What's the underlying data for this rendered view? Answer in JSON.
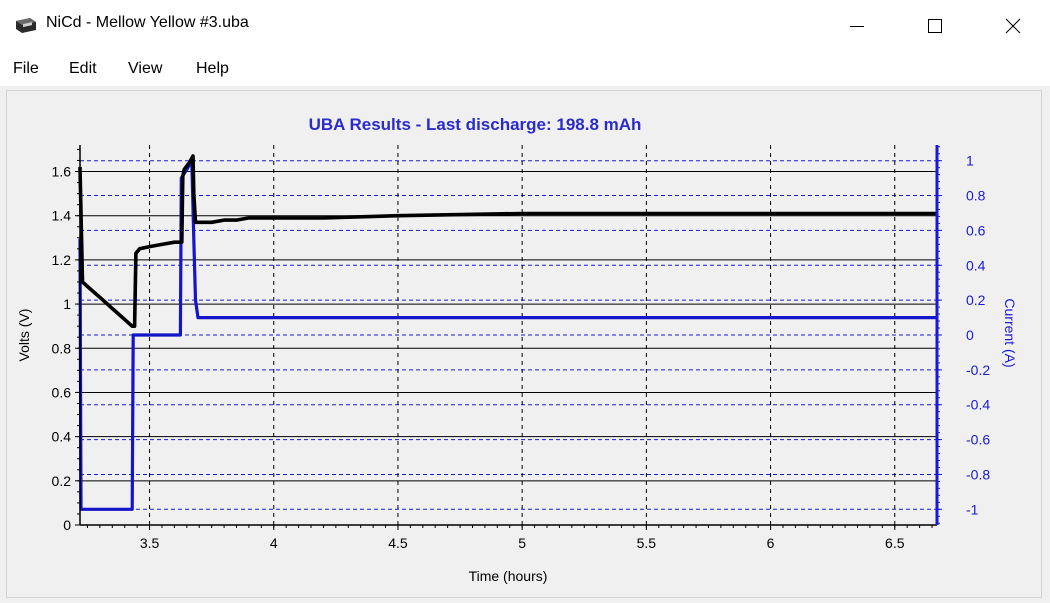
{
  "window": {
    "title": "NiCd - Mellow Yellow #3.uba",
    "icon": "battery-analyzer-icon",
    "controls": {
      "minimize": "minimize-icon",
      "maximize": "maximize-icon",
      "close": "close-icon"
    }
  },
  "menu": {
    "items": [
      "File",
      "Edit",
      "View",
      "Help"
    ]
  },
  "chart_data": {
    "type": "line",
    "title": "UBA Results - Last discharge: 198.8 mAh",
    "xlabel": "Time (hours)",
    "ylabel": "Volts (V)",
    "y2label": "Current (A)",
    "xlim": [
      3.22,
      6.67
    ],
    "ylim": [
      0,
      1.72
    ],
    "y2lim": [
      -1.09,
      1.09
    ],
    "x_ticks": [
      3.5,
      4,
      4.5,
      5,
      5.5,
      6,
      6.5
    ],
    "x_tick_labels": [
      "3.5",
      "4",
      "4.5",
      "5",
      "5.5",
      "6",
      "6.5"
    ],
    "y_ticks": [
      0,
      0.2,
      0.4,
      0.6,
      0.8,
      1,
      1.2,
      1.4,
      1.6
    ],
    "y_tick_labels": [
      "0",
      "0.2",
      "0.4",
      "0.6",
      "0.8",
      "1",
      "1.2",
      "1.4",
      "1.6"
    ],
    "y2_ticks": [
      -1,
      -0.8,
      -0.6,
      -0.4,
      -0.2,
      0,
      0.2,
      0.4,
      0.6,
      0.8,
      1
    ],
    "y2_tick_labels": [
      "-1",
      "-0.8",
      "-0.6",
      "-0.4",
      "-0.2",
      "0",
      "0.2",
      "0.4",
      "0.6",
      "0.8",
      "1"
    ],
    "grid": true,
    "colors": {
      "title": "#2b2bcc",
      "voltage": "#000000",
      "current": "#1414c8",
      "secondary_axis": "#1a1ad2"
    },
    "series": [
      {
        "axis": "left",
        "x": [
          3.22,
          3.23,
          3.26,
          3.3,
          3.35,
          3.4,
          3.43,
          3.44,
          3.445,
          3.46,
          3.5,
          3.55,
          3.6,
          3.63,
          3.634,
          3.64,
          3.66,
          3.675,
          3.678,
          3.685,
          3.7,
          3.75,
          3.8,
          3.85,
          3.9,
          4.0,
          4.2,
          4.5,
          5.0,
          5.5,
          6.0,
          6.67
        ],
        "values": [
          1.62,
          1.1,
          1.07,
          1.03,
          0.98,
          0.93,
          0.9,
          0.9,
          1.23,
          1.25,
          1.26,
          1.27,
          1.28,
          1.28,
          1.58,
          1.61,
          1.64,
          1.67,
          1.5,
          1.37,
          1.37,
          1.37,
          1.38,
          1.38,
          1.39,
          1.39,
          1.39,
          1.4,
          1.41,
          1.41,
          1.41,
          1.41
        ]
      },
      {
        "axis": "right",
        "x": [
          3.22,
          3.224,
          3.43,
          3.434,
          3.45,
          3.452,
          3.6,
          3.624,
          3.628,
          3.65,
          3.67,
          3.678,
          3.685,
          3.695,
          3.73,
          4.0,
          4.5,
          5.0,
          5.5,
          6.0,
          6.67
        ],
        "values": [
          0.55,
          -1.0,
          -1.0,
          0.0,
          0.0,
          0.0,
          0.0,
          0.0,
          0.9,
          0.95,
          1.0,
          0.55,
          0.2,
          0.1,
          0.1,
          0.1,
          0.1,
          0.1,
          0.1,
          0.1,
          0.1
        ]
      }
    ]
  }
}
